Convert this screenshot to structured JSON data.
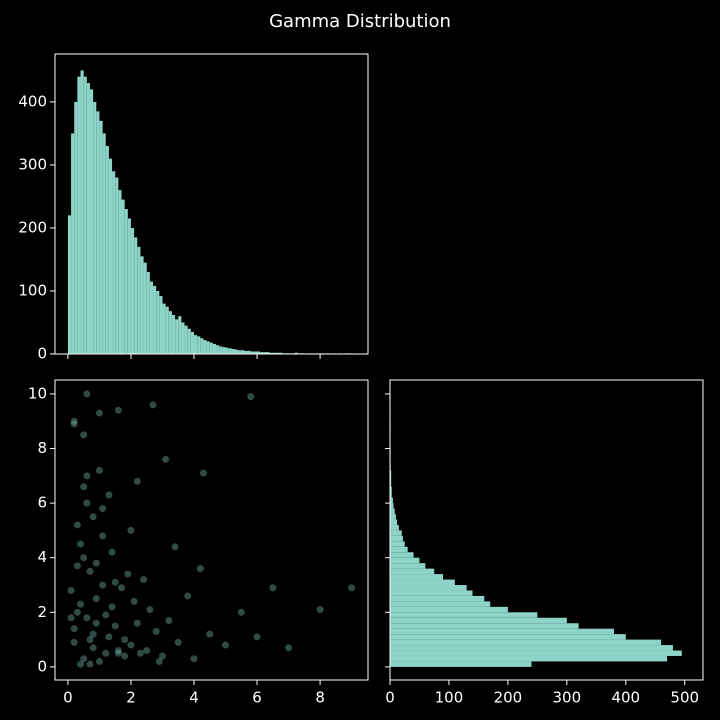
{
  "title": "Gamma Distribution",
  "chart_data": [
    {
      "type": "histogram",
      "orientation": "vertical",
      "color": "#8dd3c7",
      "bins": [
        0,
        0.1,
        0.2,
        0.3,
        0.4,
        0.5,
        0.6,
        0.7,
        0.8,
        0.9,
        1,
        1.1,
        1.2,
        1.3,
        1.4,
        1.5,
        1.6,
        1.7,
        1.8,
        1.9,
        2,
        2.1,
        2.2,
        2.3,
        2.4,
        2.5,
        2.6,
        2.7,
        2.8,
        2.9,
        3,
        3.1,
        3.2,
        3.3,
        3.4,
        3.5,
        3.6,
        3.7,
        3.8,
        3.9,
        4,
        4.1,
        4.2,
        4.3,
        4.4,
        4.5,
        4.6,
        4.7,
        4.8,
        4.9,
        5,
        5.1,
        5.2,
        5.3,
        5.4,
        5.5,
        5.6,
        5.7,
        5.8,
        5.9,
        6,
        6.1,
        6.2,
        6.3,
        6.4,
        6.5,
        6.6,
        6.7,
        6.8,
        6.9,
        7,
        7.1,
        7.2,
        7.3,
        7.4,
        7.5,
        7.6,
        7.7,
        7.8,
        7.9,
        8,
        8.1,
        8.2,
        8.3,
        8.4,
        8.5,
        8.6,
        8.7,
        8.8,
        8.9,
        9
      ],
      "values": [
        220,
        350,
        400,
        440,
        450,
        440,
        430,
        420,
        400,
        385,
        370,
        350,
        330,
        310,
        290,
        280,
        260,
        245,
        230,
        215,
        200,
        185,
        170,
        155,
        145,
        130,
        115,
        108,
        100,
        92,
        80,
        75,
        68,
        62,
        55,
        60,
        50,
        45,
        40,
        35,
        30,
        28,
        25,
        22,
        20,
        18,
        16,
        14,
        12,
        11,
        10,
        9,
        8,
        7,
        6,
        6,
        5,
        5,
        4,
        4,
        4,
        3,
        3,
        3,
        2,
        2,
        2,
        2,
        1,
        1,
        1,
        1,
        2,
        1,
        1,
        0,
        1,
        1,
        0,
        1,
        1,
        0,
        1,
        0,
        1,
        0,
        1,
        0,
        1,
        1
      ],
      "xlim": [
        -0.41,
        9.52
      ],
      "xticks": [
        0,
        2,
        4,
        6,
        8
      ],
      "ylim": [
        0,
        476
      ],
      "yticks": [
        0,
        100,
        200,
        300,
        400
      ]
    },
    {
      "type": "scatter",
      "color": "#8dd3c7",
      "alpha": 0.35,
      "x": [
        0.5,
        0.8,
        1.2,
        0.3,
        1.5,
        2.0,
        0.9,
        0.4,
        1.1,
        1.8,
        2.5,
        0.6,
        0.2,
        1.4,
        3.0,
        0.7,
        1.0,
        2.2,
        0.5,
        1.3,
        0.1,
        0.8,
        1.7,
        2.8,
        0.4,
        1.6,
        3.5,
        0.9,
        0.3,
        2.1,
        1.2,
        4.0,
        0.6,
        1.9,
        0.2,
        2.6,
        1.1,
        0.7,
        3.2,
        1.5,
        4.5,
        0.5,
        2.3,
        0.8,
        5.0,
        1.0,
        3.8,
        0.3,
        2.9,
        1.4,
        0.6,
        5.5,
        2.0,
        0.9,
        4.2,
        1.3,
        6.0,
        0.4,
        3.4,
        1.8,
        7.0,
        0.2,
        2.4,
        1.1,
        6.5,
        0.7,
        8.0,
        1.6,
        9.0,
        0.1,
        0.6,
        5.8,
        2.7,
        1.6,
        0.2,
        1.0,
        4.3,
        3.1,
        0.5,
        2.2
      ],
      "y": [
        0.3,
        1.2,
        0.5,
        2.0,
        1.5,
        0.8,
        2.5,
        0.1,
        3.0,
        1.0,
        0.6,
        1.8,
        0.9,
        2.2,
        0.4,
        3.5,
        0.2,
        1.6,
        4.0,
        1.1,
        2.8,
        0.7,
        2.9,
        1.3,
        4.5,
        0.5,
        0.9,
        3.8,
        5.2,
        2.4,
        1.9,
        0.3,
        6.0,
        3.4,
        1.4,
        2.1,
        4.8,
        0.1,
        1.7,
        3.1,
        1.2,
        6.6,
        0.5,
        5.5,
        0.8,
        7.2,
        2.6,
        3.7,
        0.2,
        4.2,
        7.0,
        2.0,
        5.0,
        1.6,
        3.6,
        6.3,
        1.1,
        2.3,
        4.4,
        0.4,
        0.7,
        8.9,
        3.2,
        5.8,
        2.9,
        1.0,
        2.1,
        0.6,
        2.9,
        1.8,
        10.0,
        9.9,
        9.6,
        9.4,
        9.0,
        9.3,
        7.1,
        7.6,
        8.5,
        6.8
      ],
      "xlim": [
        -0.41,
        9.52
      ],
      "xticks": [
        0,
        2,
        4,
        6,
        8
      ],
      "ylim": [
        -0.48,
        10.51
      ],
      "yticks": [
        0,
        2,
        4,
        6,
        8,
        10
      ]
    },
    {
      "type": "histogram",
      "orientation": "horizontal",
      "color": "#8dd3c7",
      "bins": [
        0,
        0.2,
        0.4,
        0.6,
        0.8,
        1,
        1.2,
        1.4,
        1.6,
        1.8,
        2,
        2.2,
        2.4,
        2.6,
        2.8,
        3,
        3.2,
        3.4,
        3.6,
        3.8,
        4,
        4.2,
        4.4,
        4.6,
        4.8,
        5,
        5.2,
        5.4,
        5.6,
        5.8,
        6,
        6.2,
        6.4,
        6.6,
        6.8,
        7,
        7.2,
        7.4,
        7.6,
        7.8,
        8,
        8.2,
        8.4,
        8.6,
        8.8,
        9,
        9.2,
        9.4,
        9.6,
        9.8,
        10
      ],
      "values": [
        240,
        470,
        495,
        480,
        460,
        400,
        380,
        320,
        300,
        250,
        200,
        170,
        160,
        140,
        130,
        110,
        90,
        75,
        60,
        50,
        40,
        30,
        25,
        22,
        20,
        15,
        12,
        10,
        8,
        6,
        5,
        3,
        3,
        2,
        2,
        2,
        1,
        1,
        1,
        1,
        1,
        0,
        0,
        1,
        1,
        0,
        1,
        0,
        0,
        1
      ],
      "xlim": [
        0,
        531
      ],
      "xticks": [
        0,
        100,
        200,
        300,
        400,
        500
      ],
      "ylim": [
        -0.48,
        10.51
      ],
      "yticks": [
        0,
        2,
        4,
        6,
        8,
        10
      ]
    }
  ]
}
